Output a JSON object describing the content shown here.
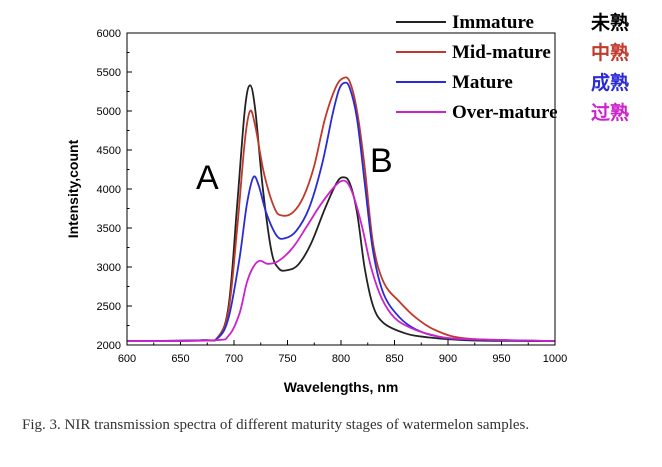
{
  "chart_data": {
    "type": "line",
    "xlabel": "Wavelengths, nm",
    "ylabel": "Intensity,count",
    "xlim": [
      600,
      1000
    ],
    "ylim": [
      2000,
      6000
    ],
    "xticks": [
      600,
      650,
      700,
      750,
      800,
      850,
      900,
      950,
      1000
    ],
    "yticks": [
      2000,
      2500,
      3000,
      3500,
      4000,
      4500,
      5000,
      5500,
      6000
    ],
    "annotations": [
      "A",
      "B"
    ],
    "legend_position": "top-right",
    "series": [
      {
        "name": "Immature",
        "name_zh": "未熟",
        "color": "#222222",
        "points": [
          [
            600,
            2050
          ],
          [
            670,
            2060
          ],
          [
            685,
            2100
          ],
          [
            695,
            2500
          ],
          [
            703,
            3800
          ],
          [
            710,
            5000
          ],
          [
            715,
            5330
          ],
          [
            720,
            5000
          ],
          [
            727,
            4000
          ],
          [
            735,
            3200
          ],
          [
            742,
            2980
          ],
          [
            750,
            2960
          ],
          [
            760,
            3030
          ],
          [
            772,
            3300
          ],
          [
            785,
            3750
          ],
          [
            796,
            4080
          ],
          [
            802,
            4150
          ],
          [
            808,
            4080
          ],
          [
            815,
            3700
          ],
          [
            822,
            3000
          ],
          [
            830,
            2500
          ],
          [
            840,
            2280
          ],
          [
            860,
            2150
          ],
          [
            880,
            2100
          ],
          [
            920,
            2060
          ],
          [
            1000,
            2050
          ]
        ]
      },
      {
        "name": "Mid-mature",
        "name_zh": "中熟",
        "color": "#c0392b",
        "points": [
          [
            600,
            2050
          ],
          [
            670,
            2060
          ],
          [
            685,
            2100
          ],
          [
            695,
            2450
          ],
          [
            703,
            3500
          ],
          [
            710,
            4600
          ],
          [
            715,
            5000
          ],
          [
            720,
            4800
          ],
          [
            728,
            4200
          ],
          [
            738,
            3750
          ],
          [
            745,
            3660
          ],
          [
            755,
            3700
          ],
          [
            765,
            3900
          ],
          [
            775,
            4300
          ],
          [
            785,
            4900
          ],
          [
            795,
            5300
          ],
          [
            802,
            5420
          ],
          [
            808,
            5380
          ],
          [
            815,
            5000
          ],
          [
            822,
            4300
          ],
          [
            830,
            3300
          ],
          [
            840,
            2800
          ],
          [
            855,
            2550
          ],
          [
            870,
            2350
          ],
          [
            890,
            2180
          ],
          [
            920,
            2080
          ],
          [
            1000,
            2050
          ]
        ]
      },
      {
        "name": "Mature",
        "name_zh": "成熟",
        "color": "#2b2bd6",
        "points": [
          [
            600,
            2050
          ],
          [
            670,
            2060
          ],
          [
            685,
            2090
          ],
          [
            695,
            2350
          ],
          [
            705,
            3100
          ],
          [
            712,
            3800
          ],
          [
            718,
            4150
          ],
          [
            723,
            4050
          ],
          [
            730,
            3700
          ],
          [
            740,
            3400
          ],
          [
            748,
            3370
          ],
          [
            758,
            3460
          ],
          [
            770,
            3750
          ],
          [
            782,
            4300
          ],
          [
            792,
            4950
          ],
          [
            798,
            5270
          ],
          [
            803,
            5360
          ],
          [
            808,
            5300
          ],
          [
            815,
            4900
          ],
          [
            822,
            4100
          ],
          [
            830,
            3200
          ],
          [
            840,
            2650
          ],
          [
            855,
            2350
          ],
          [
            870,
            2200
          ],
          [
            890,
            2110
          ],
          [
            920,
            2070
          ],
          [
            1000,
            2050
          ]
        ]
      },
      {
        "name": "Over-mature",
        "name_zh": "过熟",
        "color": "#cc22cc",
        "points": [
          [
            600,
            2050
          ],
          [
            680,
            2060
          ],
          [
            695,
            2120
          ],
          [
            705,
            2400
          ],
          [
            712,
            2800
          ],
          [
            718,
            3000
          ],
          [
            724,
            3080
          ],
          [
            732,
            3040
          ],
          [
            742,
            3080
          ],
          [
            755,
            3250
          ],
          [
            768,
            3520
          ],
          [
            780,
            3780
          ],
          [
            792,
            4000
          ],
          [
            800,
            4100
          ],
          [
            806,
            4080
          ],
          [
            812,
            3900
          ],
          [
            820,
            3500
          ],
          [
            828,
            3000
          ],
          [
            838,
            2600
          ],
          [
            850,
            2350
          ],
          [
            865,
            2220
          ],
          [
            885,
            2130
          ],
          [
            910,
            2080
          ],
          [
            1000,
            2050
          ]
        ]
      }
    ]
  },
  "caption": "Fig. 3. NIR transmission spectra of different maturity stages of watermelon samples."
}
